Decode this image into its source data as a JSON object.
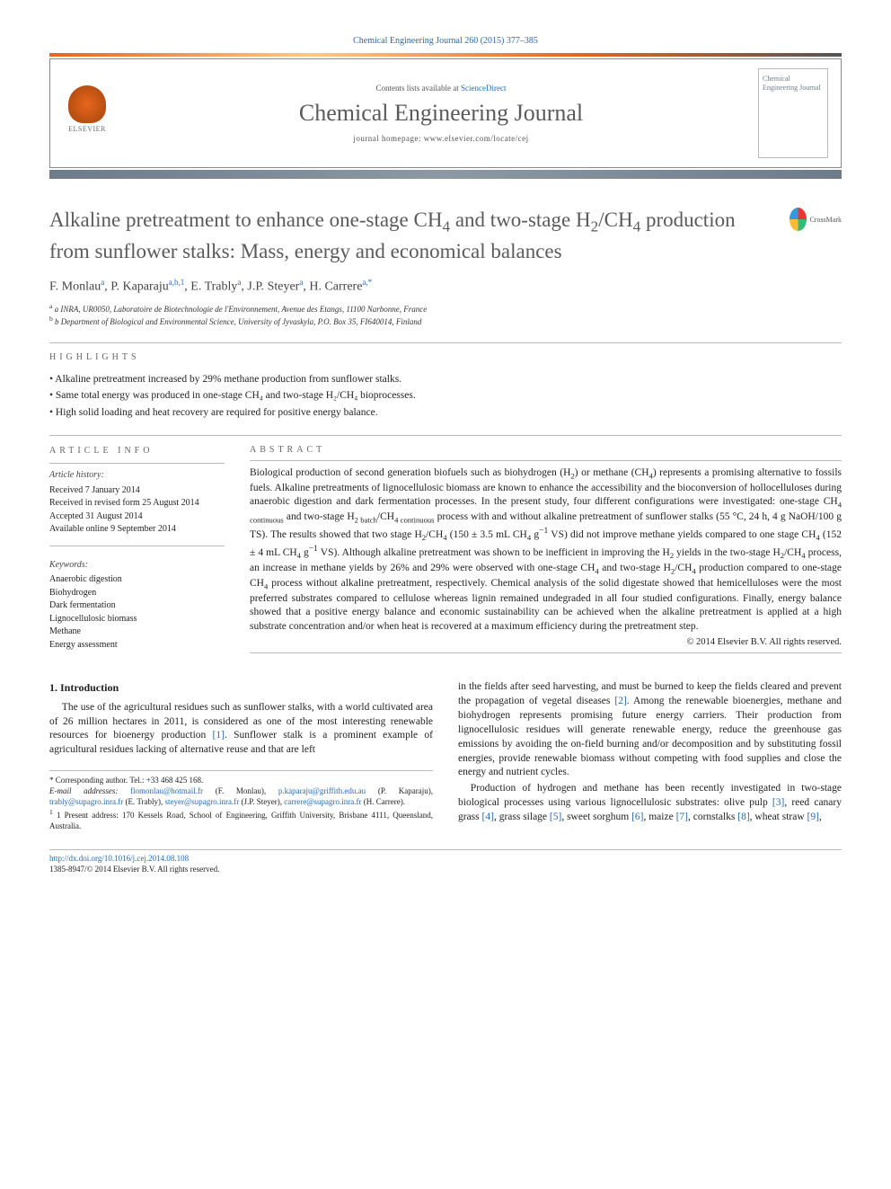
{
  "citation": "Chemical Engineering Journal 260 (2015) 377–385",
  "header": {
    "publisher_name": "ELSEVIER",
    "contents_prefix": "Contents lists available at ",
    "contents_link": "ScienceDirect",
    "journal_name": "Chemical Engineering Journal",
    "homepage_prefix": "journal homepage: ",
    "homepage_url": "www.elsevier.com/locate/cej",
    "cover_text": "Chemical Engineering Journal"
  },
  "article": {
    "title_html": "Alkaline pretreatment to enhance one-stage CH<sub>4</sub> and two-stage H<sub>2</sub>/CH<sub>4</sub> production from sunflower stalks: Mass, energy and economical balances",
    "crossmark_label": "CrossMark",
    "authors_html": "F. Monlau<sup>a</sup>, P. Kaparaju<sup>a,b,1</sup>, E. Trably<sup>a</sup>, J.P. Steyer<sup>a</sup>, H. Carrere<sup>a,*</sup>",
    "affiliations": [
      "a INRA, UR0050, Laboratoire de Biotechnologie de l'Environnement, Avenue des Etangs, 11100 Narbonne, France",
      "b Department of Biological and Environmental Science, University of Jyvaskyla, P.O. Box 35, FI640014, Finland"
    ]
  },
  "highlights": {
    "label": "HIGHLIGHTS",
    "items": [
      "Alkaline pretreatment increased by 29% methane production from sunflower stalks.",
      "Same total energy was produced in one-stage CH₄ and two-stage H₂/CH₄ bioprocesses.",
      "High solid loading and heat recovery are required for positive energy balance."
    ]
  },
  "article_info": {
    "label": "ARTICLE INFO",
    "history_head": "Article history:",
    "history": [
      "Received 7 January 2014",
      "Received in revised form 25 August 2014",
      "Accepted 31 August 2014",
      "Available online 9 September 2014"
    ],
    "keywords_head": "Keywords:",
    "keywords": [
      "Anaerobic digestion",
      "Biohydrogen",
      "Dark fermentation",
      "Lignocellulosic biomass",
      "Methane",
      "Energy assessment"
    ]
  },
  "abstract": {
    "label": "ABSTRACT",
    "text_html": "Biological production of second generation biofuels such as biohydrogen (H<sub>2</sub>) or methane (CH<sub>4</sub>) represents a promising alternative to fossils fuels. Alkaline pretreatments of lignocellulosic biomass are known to enhance the accessibility and the bioconversion of hollocelluloses during anaerobic digestion and dark fermentation processes. In the present study, four different configurations were investigated: one-stage CH<sub>4 continuous</sub> and two-stage H<sub>2 batch</sub>/CH<sub>4 continuous</sub> process with and without alkaline pretreatment of sunflower stalks (55 °C, 24 h, 4 g NaOH/100 g TS). The results showed that two stage H<sub>2</sub>/CH<sub>4</sub> (150 ± 3.5 mL CH<sub>4</sub> g<sup>−1</sup> VS) did not improve methane yields compared to one stage CH<sub>4</sub> (152 ± 4 mL CH<sub>4</sub> g<sup>−1</sup> VS). Although alkaline pretreatment was shown to be inefficient in improving the H<sub>2</sub> yields in the two-stage H<sub>2</sub>/CH<sub>4</sub> process, an increase in methane yields by 26% and 29% were observed with one-stage CH<sub>4</sub> and two-stage H<sub>2</sub>/CH<sub>4</sub> production compared to one-stage CH<sub>4</sub> process without alkaline pretreatment, respectively. Chemical analysis of the solid digestate showed that hemicelluloses were the most preferred substrates compared to cellulose whereas lignin remained undegraded in all four studied configurations. Finally, energy balance showed that a positive energy balance and economic sustainability can be achieved when the alkaline pretreatment is applied at a high substrate concentration and/or when heat is recovered at a maximum efficiency during the pretreatment step.",
    "copyright": "© 2014 Elsevier B.V. All rights reserved."
  },
  "body": {
    "section_heading": "1. Introduction",
    "p1_html": "The use of the agricultural residues such as sunflower stalks, with a world cultivated area of 26 million hectares in 2011, is considered as one of the most interesting renewable resources for bioenergy production <span class=\"ref-link\">[1]</span>. Sunflower stalk is a prominent example of agricultural residues lacking of alternative reuse and that are left",
    "p2_html": "in the fields after seed harvesting, and must be burned to keep the fields cleared and prevent the propagation of vegetal diseases <span class=\"ref-link\">[2]</span>. Among the renewable bioenergies, methane and biohydrogen represents promising future energy carriers. Their production from lignocellulosic residues will generate renewable energy, reduce the greenhouse gas emissions by avoiding the on-field burning and/or decomposition and by substituting fossil energies, provide renewable biomass without competing with food supplies and close the energy and nutrient cycles.",
    "p3_html": "Production of hydrogen and methane has been recently investigated in two-stage biological processes using various lignocellulosic substrates: olive pulp <span class=\"ref-link\">[3]</span>, reed canary grass <span class=\"ref-link\">[4]</span>, grass silage <span class=\"ref-link\">[5]</span>, sweet sorghum <span class=\"ref-link\">[6]</span>, maize <span class=\"ref-link\">[7]</span>, cornstalks <span class=\"ref-link\">[8]</span>, wheat straw <span class=\"ref-link\">[9]</span>,"
  },
  "footnotes": {
    "corresponding": "* Corresponding author. Tel.: +33 468 425 168.",
    "email_label": "E-mail addresses: ",
    "emails_html": "<a>flomonlau@hotmail.fr</a> (F. Monlau), <a>p.kaparaju@griffith.edu.au</a> (P. Kaparaju), <a>trably@supagro.inra.fr</a> (E. Trably), <a>steyer@supagro.inra.fr</a> (J.P. Steyer), <a>carrere@supagro.inra.fr</a> (H. Carrere).",
    "present_address": "1 Present address: 170 Kessels Road, School of Engineering, Griffith University, Brisbane 4111, Queensland, Australia."
  },
  "footer": {
    "doi": "http://dx.doi.org/10.1016/j.cej.2014.08.108",
    "issn_line": "1385-8947/© 2014 Elsevier B.V. All rights reserved."
  },
  "colors": {
    "link": "#2969b0",
    "accent": "#e8661b",
    "header_gray": "#6d7c8a"
  }
}
